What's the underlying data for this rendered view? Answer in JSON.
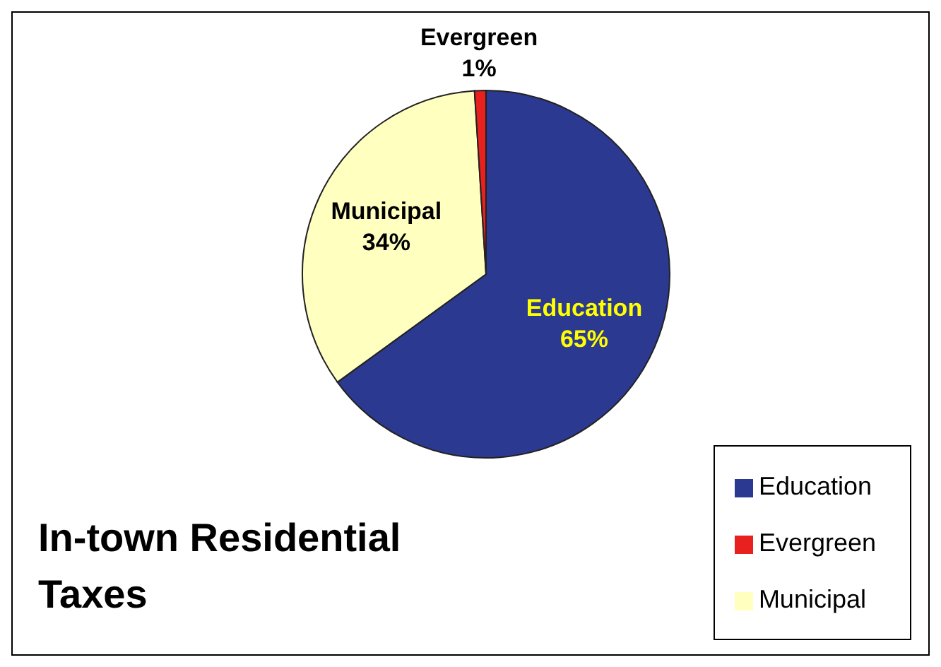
{
  "chart_data": {
    "type": "pie",
    "title": "In-town Residential Taxes",
    "categories": [
      "Education",
      "Municipal",
      "Evergreen"
    ],
    "values": [
      65,
      34,
      1
    ],
    "value_labels": [
      "65%",
      "34%",
      "1%"
    ],
    "colors": [
      "#2b3990",
      "#ffffc0",
      "#e8201e"
    ],
    "legend": "bottom right"
  }
}
